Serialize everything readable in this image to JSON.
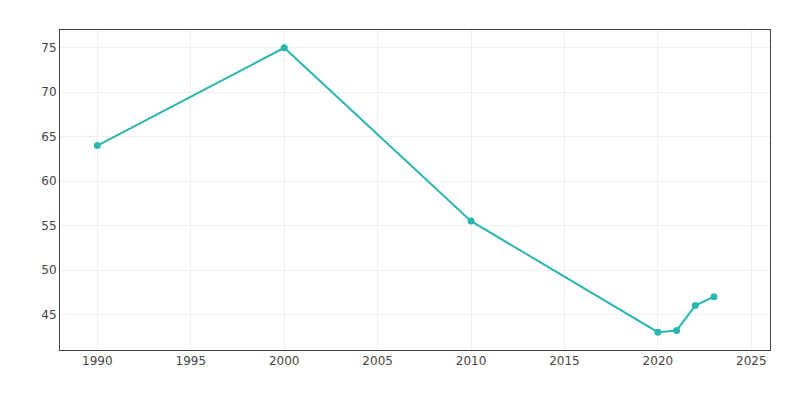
{
  "chart_data": {
    "type": "line",
    "x": [
      1990,
      2000,
      2010,
      2020,
      2021,
      2022,
      2023
    ],
    "values": [
      64,
      75,
      55.5,
      43,
      43.2,
      46,
      47
    ],
    "color": "#2ab5b0",
    "marker": "circle",
    "xlim": [
      1988,
      2026
    ],
    "ylim": [
      41,
      77
    ],
    "xticks": [
      1990,
      1995,
      2000,
      2005,
      2010,
      2015,
      2020,
      2025
    ],
    "yticks": [
      45,
      50,
      55,
      60,
      65,
      70,
      75
    ],
    "grid": true
  }
}
